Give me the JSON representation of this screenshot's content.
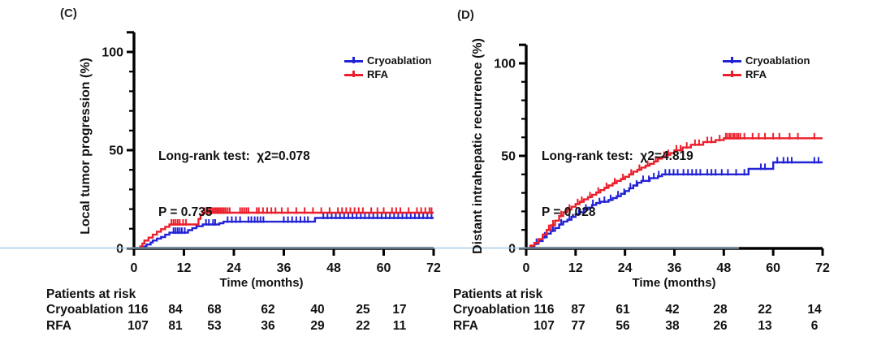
{
  "colors": {
    "cryoablation": "#2323D6",
    "rfa": "#EB1F2B",
    "axis": "#000000",
    "zero_line": "#A5CBE9",
    "text": "#111111"
  },
  "chart_data": [
    {
      "type": "line",
      "km_style": "step",
      "panel_tag": "(C)",
      "ylabel": "Local tumor progression (%)",
      "xlabel": "Time (months)",
      "xlim": [
        0,
        72
      ],
      "ylim": [
        0,
        110
      ],
      "x_ticks": [
        0,
        12,
        24,
        36,
        48,
        60,
        72
      ],
      "y_ticks": [
        0,
        50,
        100
      ],
      "y_minor_ticks": [
        10,
        20,
        30,
        40,
        60,
        70,
        80,
        90
      ],
      "y_axis_cap": 110,
      "grid": false,
      "legend_position": "top-right",
      "stats_line1": "Long-rank test:  χ2=0.078",
      "stats_line2": "P = 0.735",
      "series": [
        {
          "name": "Cryoablation",
          "color_key": "cryoablation",
          "steps": [
            [
              0,
              0
            ],
            [
              2.5,
              1
            ],
            [
              3,
              2
            ],
            [
              4,
              3
            ],
            [
              4.5,
              4
            ],
            [
              5.5,
              5
            ],
            [
              6.5,
              5.8
            ],
            [
              7.5,
              7
            ],
            [
              8.5,
              8
            ],
            [
              13,
              9.3
            ],
            [
              14,
              10.3
            ],
            [
              15,
              11.3
            ],
            [
              16.5,
              12.2
            ],
            [
              20.5,
              12.8
            ],
            [
              21.5,
              13.6
            ],
            [
              43.5,
              15.5
            ]
          ],
          "final_value": 15.5,
          "censor_times": [
            9.5,
            10,
            10.5,
            11,
            11.5,
            12.2,
            17.3,
            18,
            19,
            19.5,
            22.5,
            23.5,
            24.5,
            25.5,
            27.5,
            28.2,
            29,
            29.7,
            30.4,
            31.1,
            36,
            37,
            38,
            39,
            40,
            41,
            41.8,
            45.5,
            46.5,
            47.5,
            48.5,
            49.5,
            50.5,
            51.5,
            52.5,
            53.5,
            54.5,
            55.5,
            56.5,
            57.5,
            58.5,
            59.5,
            60.5,
            61.5,
            62.5,
            63.5,
            64.5,
            65.5,
            66.5,
            67.5,
            68.5,
            69.5,
            70.5,
            71.5
          ]
        },
        {
          "name": "RFA",
          "color_key": "rfa",
          "steps": [
            [
              0,
              0
            ],
            [
              1.5,
              1
            ],
            [
              2,
              2.5
            ],
            [
              2.5,
              4
            ],
            [
              3.5,
              5.5
            ],
            [
              4.5,
              7
            ],
            [
              5.5,
              8.5
            ],
            [
              6.5,
              9.8
            ],
            [
              7.5,
              11
            ],
            [
              8.5,
              12.2
            ],
            [
              15.5,
              15
            ],
            [
              16,
              17
            ],
            [
              16.5,
              18.2
            ]
          ],
          "final_value": 18.2,
          "censor_times": [
            9,
            9.5,
            10,
            10.5,
            11,
            11.8,
            12.5,
            17,
            17.5,
            18,
            18.4,
            18.8,
            19.2,
            19.6,
            20,
            20.4,
            20.8,
            21.2,
            21.6,
            22,
            22.5,
            23,
            25.5,
            26,
            26.5,
            27,
            27.5,
            29.5,
            30,
            31,
            32,
            33,
            34,
            35.5,
            37,
            39,
            41,
            43,
            45,
            47,
            49,
            50,
            51,
            52,
            53,
            54,
            55,
            57,
            58.5,
            60,
            62,
            63,
            64,
            66,
            68,
            69,
            70,
            71,
            71.5
          ]
        }
      ],
      "at_risk": {
        "title": "Patients at risk",
        "rows": [
          {
            "label": "Cryoablation",
            "values": [
              116,
              84,
              68,
              62,
              40,
              25,
              17
            ]
          },
          {
            "label": "RFA",
            "values": [
              107,
              81,
              53,
              36,
              29,
              22,
              11
            ]
          }
        ]
      }
    },
    {
      "type": "line",
      "km_style": "step",
      "panel_tag": "(D)",
      "ylabel": "Distant intrahepatic recurrence (%)",
      "xlabel": "Time (months)",
      "xlim": [
        0,
        72
      ],
      "ylim": [
        0,
        110
      ],
      "x_ticks": [
        0,
        12,
        24,
        36,
        48,
        60,
        72
      ],
      "y_ticks": [
        0,
        50,
        100
      ],
      "y_minor_ticks": [
        10,
        20,
        30,
        40,
        60,
        70,
        80,
        90
      ],
      "y_axis_cap": 110,
      "grid": false,
      "legend_position": "top-right",
      "stats_line1": "Long-rank test:  χ2=4.819",
      "stats_line2": "P = 0.028",
      "series": [
        {
          "name": "Cryoablation",
          "color_key": "cryoablation",
          "steps": [
            [
              0,
              0
            ],
            [
              1,
              1
            ],
            [
              2,
              2.5
            ],
            [
              3,
              4
            ],
            [
              4,
              6
            ],
            [
              5,
              8
            ],
            [
              6,
              9.5
            ],
            [
              7,
              11
            ],
            [
              8,
              13
            ],
            [
              9,
              14.5
            ],
            [
              10,
              15.5
            ],
            [
              11,
              17
            ],
            [
              12,
              18.5
            ],
            [
              13,
              19.5
            ],
            [
              14,
              21
            ],
            [
              15,
              22
            ],
            [
              16,
              23.5
            ],
            [
              17,
              24.5
            ],
            [
              18,
              25.2
            ],
            [
              20,
              26.2
            ],
            [
              21,
              27.2
            ],
            [
              22,
              28.2
            ],
            [
              23,
              29.5
            ],
            [
              24,
              31
            ],
            [
              25,
              32.5
            ],
            [
              26,
              34
            ],
            [
              27,
              35.5
            ],
            [
              28,
              36.5
            ],
            [
              30,
              38
            ],
            [
              32,
              39
            ],
            [
              33,
              40
            ],
            [
              54,
              43
            ],
            [
              60,
              46.5
            ]
          ],
          "final_value": 46.5,
          "censor_times": [
            2.5,
            4.5,
            6.5,
            8.5,
            10.5,
            12.8,
            14.5,
            16.2,
            17.8,
            19,
            20.5,
            22.3,
            23.8,
            25.3,
            26.8,
            28.4,
            29.8,
            31,
            32.2,
            33.8,
            34.8,
            35.8,
            36.8,
            38.2,
            39.3,
            40.3,
            41.3,
            42.3,
            44,
            45,
            46,
            47.5,
            49,
            51,
            53,
            57,
            58,
            61,
            62.5,
            63.5,
            64.5,
            70,
            71
          ]
        },
        {
          "name": "RFA",
          "color_key": "rfa",
          "steps": [
            [
              0,
              0
            ],
            [
              1,
              1.5
            ],
            [
              2,
              3
            ],
            [
              3,
              5
            ],
            [
              4,
              7.5
            ],
            [
              5,
              10
            ],
            [
              6,
              12.5
            ],
            [
              7,
              15
            ],
            [
              8,
              17.5
            ],
            [
              9,
              19.5
            ],
            [
              10,
              21
            ],
            [
              11,
              22.5
            ],
            [
              12,
              24
            ],
            [
              13,
              25.2
            ],
            [
              14,
              26.5
            ],
            [
              15,
              27.7
            ],
            [
              16,
              29
            ],
            [
              17,
              30.2
            ],
            [
              18,
              31.5
            ],
            [
              19,
              32.7
            ],
            [
              20,
              34
            ],
            [
              21,
              35.2
            ],
            [
              22,
              36.5
            ],
            [
              23,
              37.5
            ],
            [
              24,
              38.7
            ],
            [
              25,
              40
            ],
            [
              26,
              41.5
            ],
            [
              27,
              42.5
            ],
            [
              28,
              43.7
            ],
            [
              29,
              44.7
            ],
            [
              30,
              45.7
            ],
            [
              31,
              47
            ],
            [
              32,
              48.5
            ],
            [
              33,
              49.5
            ],
            [
              34,
              50.5
            ],
            [
              35,
              51.5
            ],
            [
              36,
              53
            ],
            [
              38,
              54.5
            ],
            [
              40,
              56
            ],
            [
              43,
              57.5
            ],
            [
              46,
              58.5
            ],
            [
              48,
              59.5
            ]
          ],
          "final_value": 59.5,
          "censor_times": [
            5.5,
            6.5,
            8.5,
            10.5,
            12.5,
            13.5,
            15.5,
            17.5,
            19.5,
            21.5,
            23.5,
            25.5,
            27.5,
            29.5,
            31.5,
            33.5,
            34.5,
            36.5,
            37.5,
            39,
            41,
            42,
            44,
            45,
            47,
            48.5,
            49,
            49.5,
            50,
            50.5,
            51,
            51.5,
            52,
            53,
            55,
            56.5,
            58,
            60,
            61.5,
            64,
            66,
            70
          ]
        }
      ],
      "at_risk": {
        "title": "Patients at risk",
        "rows": [
          {
            "label": "Cryoablation",
            "values": [
              116,
              87,
              61,
              42,
              28,
              22,
              14
            ]
          },
          {
            "label": "RFA",
            "values": [
              107,
              77,
              56,
              38,
              26,
              13,
              6
            ]
          }
        ]
      }
    }
  ]
}
